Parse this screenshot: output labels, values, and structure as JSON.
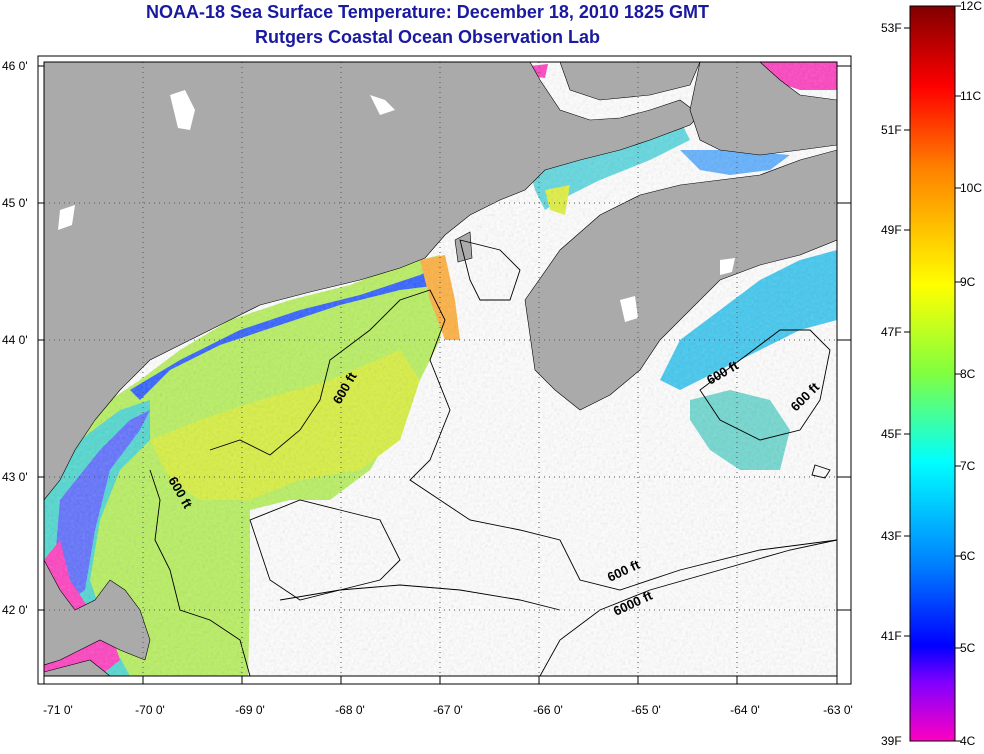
{
  "header": {
    "title": "NOAA-18 Sea Surface Temperature:  December 18, 2010 1825 GMT",
    "subtitle": "Rutgers Coastal Ocean Observation Lab"
  },
  "map": {
    "lon_ticks": [
      "-71 0'",
      "-70 0'",
      "-69 0'",
      "-68 0'",
      "-67 0'",
      "-66 0'",
      "-65 0'",
      "-64 0'",
      "-63 0'"
    ],
    "lat_ticks": [
      "46 0'",
      "45 0'",
      "44 0'",
      "43 0'",
      "42 0'"
    ],
    "contour_labels": [
      "600 ft",
      "600 ft",
      "600 ft",
      "600 ft",
      "6000 ft"
    ],
    "colors": {
      "land": "#aaaaaa",
      "ocean_nodata": "#ffffff",
      "grid": "#555555"
    }
  },
  "colorbar": {
    "fahrenheit_labels": [
      "53F",
      "51F",
      "49F",
      "47F",
      "45F",
      "43F",
      "41F",
      "39F"
    ],
    "celsius_labels": [
      "12C",
      "11C",
      "10C",
      "9C",
      "8C",
      "7C",
      "6C",
      "5C",
      "4C"
    ],
    "gradient_colors": [
      "#800000",
      "#ff0000",
      "#ff8000",
      "#ffff00",
      "#80ff40",
      "#00ffff",
      "#0080ff",
      "#0000ff",
      "#8000ff",
      "#ff00c0"
    ]
  }
}
